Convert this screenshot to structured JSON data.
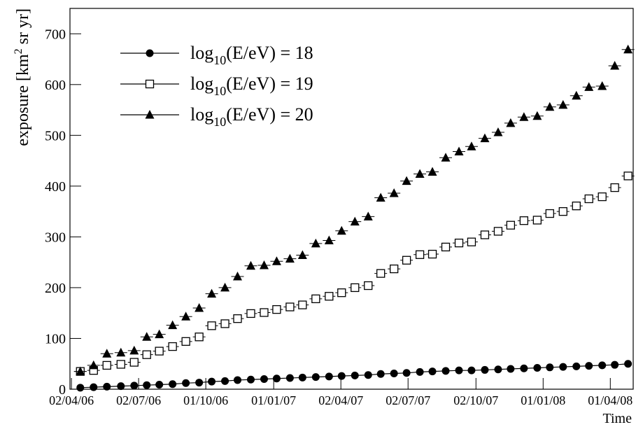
{
  "chart_data": {
    "type": "scatter",
    "y_label": "exposure [km2 sr yr]",
    "x_label": "Time",
    "xlim": [
      -2,
      761
    ],
    "ylim": [
      0,
      750
    ],
    "xticks": [
      {
        "value": 0,
        "label": "02/04/06"
      },
      {
        "value": 91,
        "label": "02/07/06"
      },
      {
        "value": 182,
        "label": "01/10/06"
      },
      {
        "value": 274,
        "label": "01/01/07"
      },
      {
        "value": 365,
        "label": "02/04/07"
      },
      {
        "value": 456,
        "label": "02/07/07"
      },
      {
        "value": 548,
        "label": "02/10/07"
      },
      {
        "value": 639,
        "label": "01/01/08"
      },
      {
        "value": 730,
        "label": "01/04/08"
      }
    ],
    "yticks": [
      0,
      100,
      200,
      300,
      400,
      500,
      600,
      700
    ],
    "x": [
      12,
      30,
      48,
      67,
      85,
      102,
      119,
      137,
      155,
      173,
      190,
      208,
      225,
      243,
      261,
      278,
      296,
      313,
      331,
      349,
      366,
      384,
      402,
      419,
      437,
      454,
      472,
      489,
      507,
      525,
      542,
      560,
      578,
      595,
      613,
      631,
      648,
      666,
      684,
      701,
      719,
      736,
      754
    ],
    "series": [
      {
        "name": "log10(E/eV) = 18",
        "marker": "circle",
        "color": "#000000",
        "values": [
          3,
          4,
          5,
          6,
          7,
          8,
          9,
          10,
          12,
          13,
          15,
          16,
          18,
          19,
          20,
          21,
          22,
          23,
          24,
          25,
          26,
          27,
          28,
          30,
          31,
          32,
          34,
          35,
          36,
          37,
          37,
          38,
          39,
          40,
          41,
          42,
          43,
          44,
          45,
          46,
          47,
          48,
          50
        ]
      },
      {
        "name": "log10(E/eV) = 19",
        "marker": "square",
        "color": "#000000",
        "values": [
          35,
          37,
          47,
          49,
          53,
          68,
          75,
          84,
          94,
          103,
          125,
          129,
          139,
          149,
          151,
          157,
          162,
          166,
          178,
          183,
          190,
          200,
          204,
          228,
          237,
          254,
          265,
          266,
          280,
          288,
          290,
          304,
          311,
          323,
          332,
          333,
          346,
          350,
          361,
          375,
          379,
          397,
          420
        ]
      },
      {
        "name": "log10(E/eV) = 20",
        "marker": "triangle",
        "color": "#000000",
        "values": [
          35,
          47,
          70,
          72,
          76,
          103,
          108,
          126,
          143,
          160,
          188,
          200,
          222,
          243,
          244,
          252,
          257,
          264,
          287,
          293,
          312,
          330,
          340,
          377,
          386,
          410,
          424,
          428,
          456,
          468,
          478,
          494,
          506,
          524,
          536,
          538,
          556,
          560,
          578,
          595,
          597,
          637,
          669
        ]
      }
    ]
  }
}
